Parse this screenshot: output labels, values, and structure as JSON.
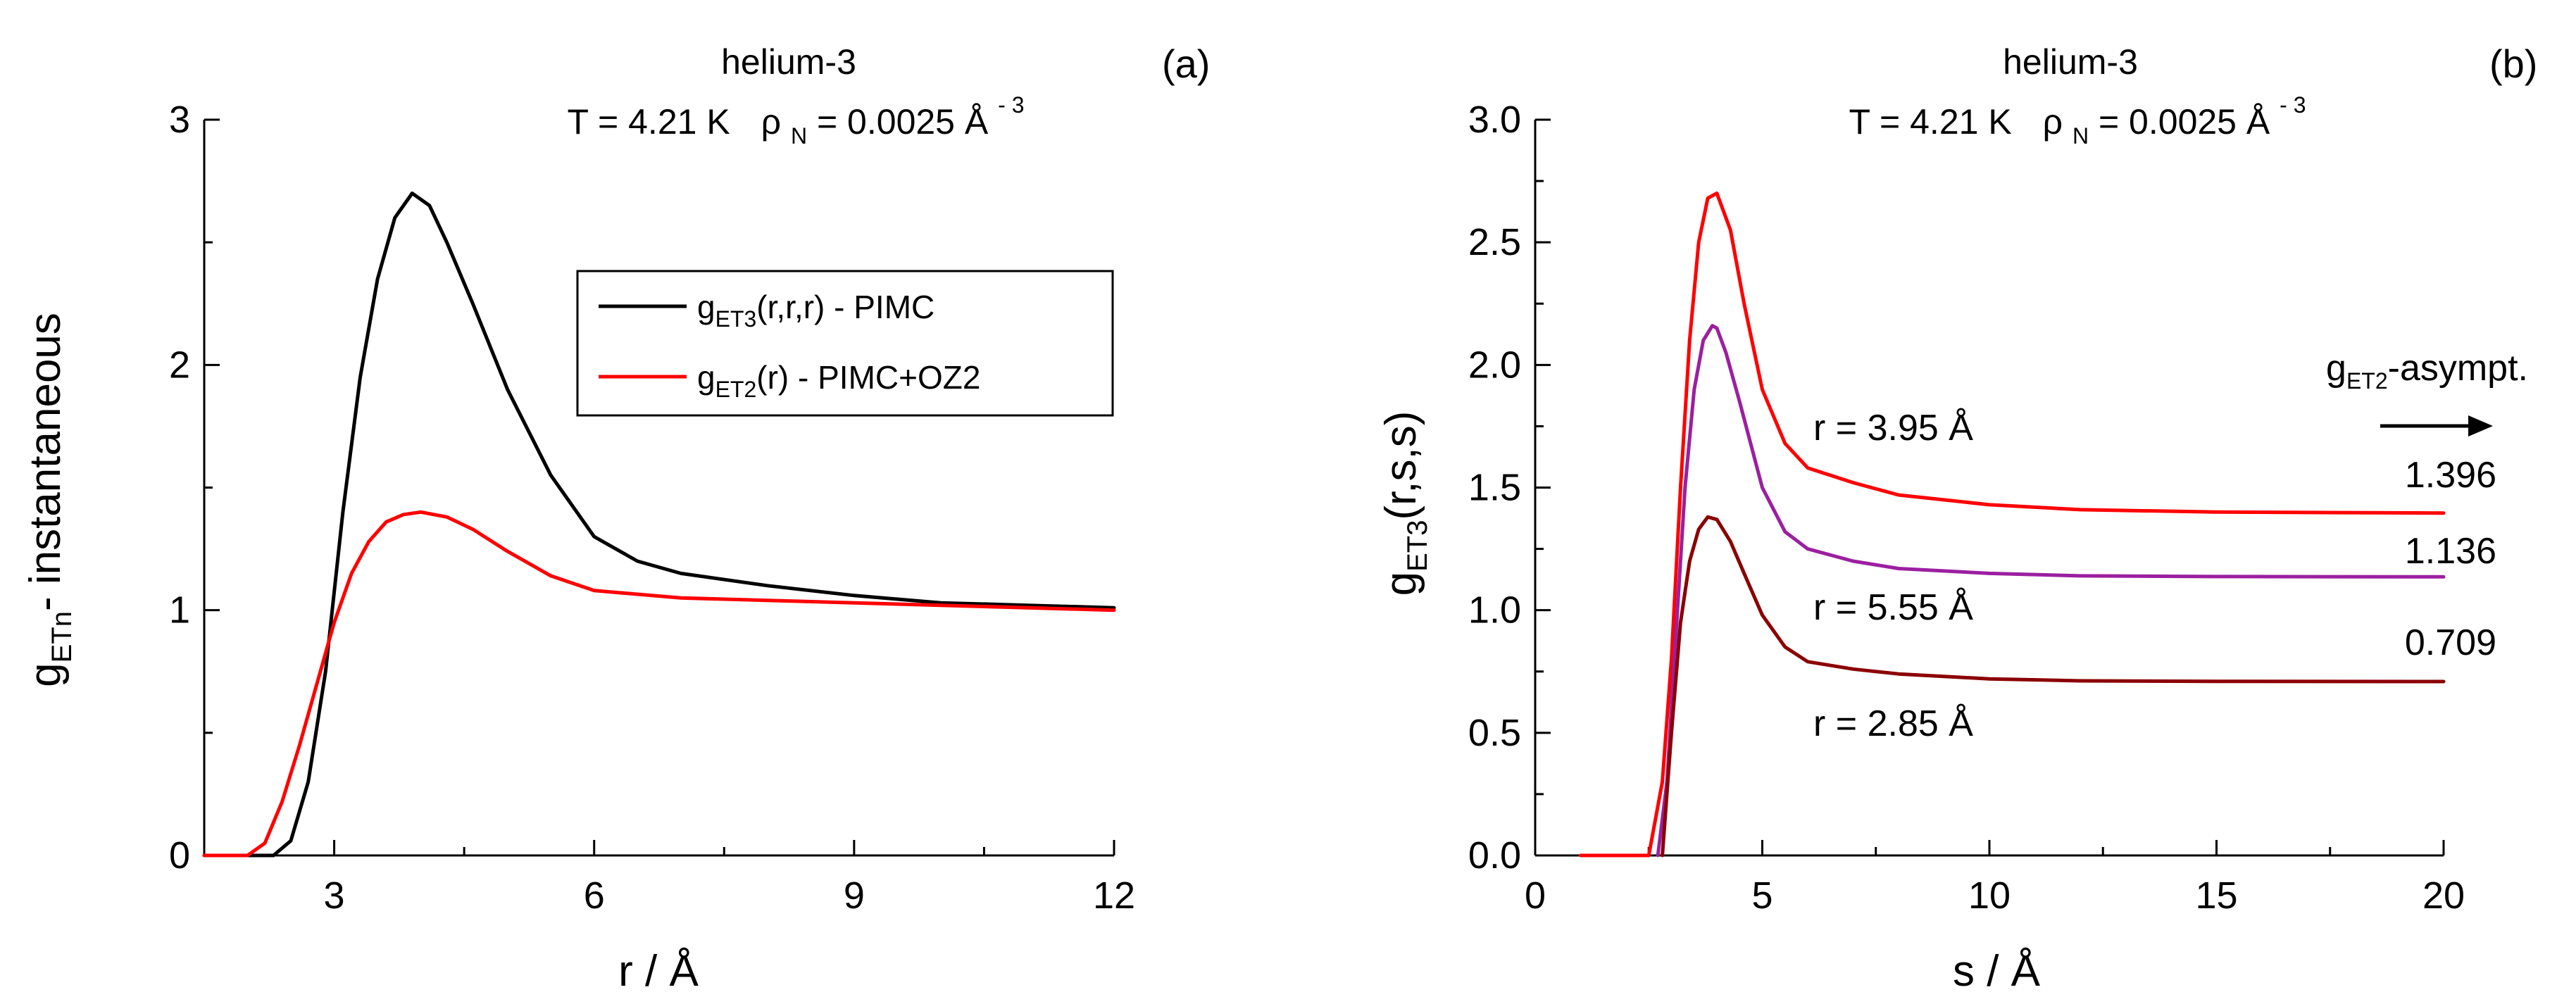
{
  "chart_data": [
    {
      "panel": "(a)",
      "type": "line",
      "title": "helium-3",
      "subtitle": {
        "temp": "T = 4.21 K",
        "rho_sym": "ρ",
        "rho_sub": "N",
        "rho_val": " = 0.0025 Å",
        "rho_sup": "- 3"
      },
      "xlabel": "r / Å",
      "ylabel": {
        "main": "g",
        "sub": "ETn",
        "rest": "- instantaneous"
      },
      "xlim": [
        1.5,
        12
      ],
      "ylim": [
        0,
        3
      ],
      "xticks": [
        3,
        6,
        9,
        12
      ],
      "yticks": [
        0,
        1,
        2,
        3
      ],
      "legend_position": "upper-right",
      "series": [
        {
          "name": "g_ET3(r,r,r) - PIMC",
          "legend": {
            "main": "g",
            "sub": "ET3",
            "rest": "(r,r,r) - PIMC"
          },
          "color": "#000000",
          "x": [
            1.5,
            2.3,
            2.5,
            2.7,
            2.9,
            3.1,
            3.3,
            3.5,
            3.7,
            3.9,
            4.1,
            4.3,
            4.6,
            5.0,
            5.5,
            6.0,
            6.5,
            7.0,
            8.0,
            9.0,
            10.0,
            11.0,
            12.0
          ],
          "y": [
            0,
            0,
            0.06,
            0.3,
            0.75,
            1.4,
            1.95,
            2.35,
            2.6,
            2.7,
            2.65,
            2.5,
            2.25,
            1.9,
            1.55,
            1.3,
            1.2,
            1.15,
            1.1,
            1.06,
            1.03,
            1.02,
            1.01
          ]
        },
        {
          "name": "g_ET2(r) - PIMC+OZ2",
          "legend": {
            "main": "g",
            "sub": "ET2",
            "rest": "(r) - PIMC+OZ2"
          },
          "color": "#ff0000",
          "x": [
            1.5,
            2.0,
            2.2,
            2.4,
            2.6,
            2.8,
            3.0,
            3.2,
            3.4,
            3.6,
            3.8,
            4.0,
            4.3,
            4.6,
            5.0,
            5.5,
            6.0,
            7.0,
            8.0,
            9.0,
            10.0,
            12.0
          ],
          "y": [
            0,
            0,
            0.05,
            0.22,
            0.45,
            0.7,
            0.95,
            1.15,
            1.28,
            1.36,
            1.39,
            1.4,
            1.38,
            1.33,
            1.24,
            1.14,
            1.08,
            1.05,
            1.04,
            1.03,
            1.02,
            1.0
          ]
        }
      ]
    },
    {
      "panel": "(b)",
      "type": "line",
      "title": "helium-3",
      "subtitle": {
        "temp": "T = 4.21 K",
        "rho_sym": "ρ",
        "rho_sub": "N",
        "rho_val": " = 0.0025 Å",
        "rho_sup": "- 3"
      },
      "xlabel": "s / Å",
      "ylabel": {
        "main": "g",
        "sub": "ET3",
        "rest": "(r,s,s)"
      },
      "xlim": [
        0,
        20
      ],
      "ylim": [
        0,
        3
      ],
      "xticks": [
        0,
        5,
        10,
        15,
        20
      ],
      "yticks": [
        0.0,
        0.5,
        1.0,
        1.5,
        2.0,
        2.5,
        3.0
      ],
      "ytick_labels": [
        "0.0",
        "0.5",
        "1.0",
        "1.5",
        "2.0",
        "2.5",
        "3.0"
      ],
      "asymptote_label": {
        "main": "g",
        "sub": "ET2",
        "rest": "-asympt."
      },
      "series": [
        {
          "name": "r = 3.95 Å",
          "label": "r = 3.95 Å",
          "asymptote": "1.396",
          "color": "#ff0000",
          "x": [
            1.0,
            2.5,
            2.8,
            3.0,
            3.2,
            3.4,
            3.6,
            3.8,
            4.0,
            4.3,
            4.6,
            5.0,
            5.5,
            6.0,
            7.0,
            8.0,
            10.0,
            12.0,
            15.0,
            20.0
          ],
          "y": [
            0,
            0,
            0.3,
            0.8,
            1.5,
            2.1,
            2.5,
            2.68,
            2.7,
            2.55,
            2.25,
            1.9,
            1.68,
            1.58,
            1.52,
            1.47,
            1.43,
            1.41,
            1.4,
            1.396
          ]
        },
        {
          "name": "r = 5.55 Å",
          "label": "r = 5.55 Å",
          "asymptote": "1.136",
          "color": "#9b1fa0",
          "x": [
            2.7,
            2.9,
            3.1,
            3.3,
            3.5,
            3.7,
            3.9,
            4.0,
            4.2,
            4.5,
            5.0,
            5.5,
            6.0,
            7.0,
            8.0,
            10.0,
            12.0,
            15.0,
            20.0
          ],
          "y": [
            0,
            0.3,
            0.9,
            1.5,
            1.9,
            2.1,
            2.16,
            2.15,
            2.05,
            1.85,
            1.5,
            1.32,
            1.25,
            1.2,
            1.17,
            1.15,
            1.14,
            1.137,
            1.136
          ]
        },
        {
          "name": "r = 2.85 Å",
          "label": "r = 2.85 Å",
          "asymptote": "0.709",
          "color": "#8b0000",
          "x": [
            2.8,
            3.0,
            3.2,
            3.4,
            3.6,
            3.8,
            4.0,
            4.3,
            4.6,
            5.0,
            5.5,
            6.0,
            7.0,
            8.0,
            10.0,
            12.0,
            15.0,
            20.0
          ],
          "y": [
            0,
            0.5,
            0.95,
            1.2,
            1.33,
            1.38,
            1.37,
            1.28,
            1.15,
            0.98,
            0.85,
            0.79,
            0.76,
            0.74,
            0.72,
            0.712,
            0.71,
            0.709
          ]
        }
      ]
    }
  ]
}
